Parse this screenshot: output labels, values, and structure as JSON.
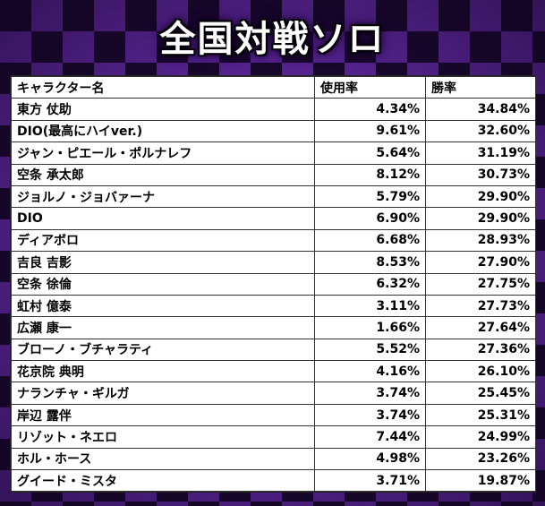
{
  "title": "全国対戦ソロ",
  "table": {
    "headers": [
      "キャラクター名",
      "使用率",
      "勝率"
    ],
    "rows": [
      {
        "name": "東方 仗助",
        "usage": "4.34%",
        "winrate": "34.84%"
      },
      {
        "name": "DIO(最高にハイver.)",
        "usage": "9.61%",
        "winrate": "32.60%"
      },
      {
        "name": "ジャン・ピエール・ポルナレフ",
        "usage": "5.64%",
        "winrate": "31.19%"
      },
      {
        "name": "空条 承太郎",
        "usage": "8.12%",
        "winrate": "30.73%"
      },
      {
        "name": "ジョルノ・ジョバァーナ",
        "usage": "5.79%",
        "winrate": "29.90%"
      },
      {
        "name": "DIO",
        "usage": "6.90%",
        "winrate": "29.90%"
      },
      {
        "name": "ディアボロ",
        "usage": "6.68%",
        "winrate": "28.93%"
      },
      {
        "name": "吉良 吉影",
        "usage": "8.53%",
        "winrate": "27.90%"
      },
      {
        "name": "空条 徐倫",
        "usage": "6.32%",
        "winrate": "27.75%"
      },
      {
        "name": "虹村 億泰",
        "usage": "3.11%",
        "winrate": "27.73%"
      },
      {
        "name": "広瀬 康一",
        "usage": "1.66%",
        "winrate": "27.64%"
      },
      {
        "name": "ブローノ・ブチャラティ",
        "usage": "5.52%",
        "winrate": "27.36%"
      },
      {
        "name": "花京院 典明",
        "usage": "4.16%",
        "winrate": "26.10%"
      },
      {
        "name": "ナランチャ・ギルガ",
        "usage": "3.74%",
        "winrate": "25.45%"
      },
      {
        "name": "岸辺 露伴",
        "usage": "3.74%",
        "winrate": "25.31%"
      },
      {
        "name": "リゾット・ネエロ",
        "usage": "7.44%",
        "winrate": "24.99%"
      },
      {
        "name": "ホル・ホース",
        "usage": "4.98%",
        "winrate": "23.26%"
      },
      {
        "name": "グイード・ミスタ",
        "usage": "3.71%",
        "winrate": "19.87%"
      }
    ]
  },
  "colors": {
    "background_dark": "#1a0a2e",
    "background_checker": "#6a2fb0",
    "title_text": "#ffffff"
  }
}
